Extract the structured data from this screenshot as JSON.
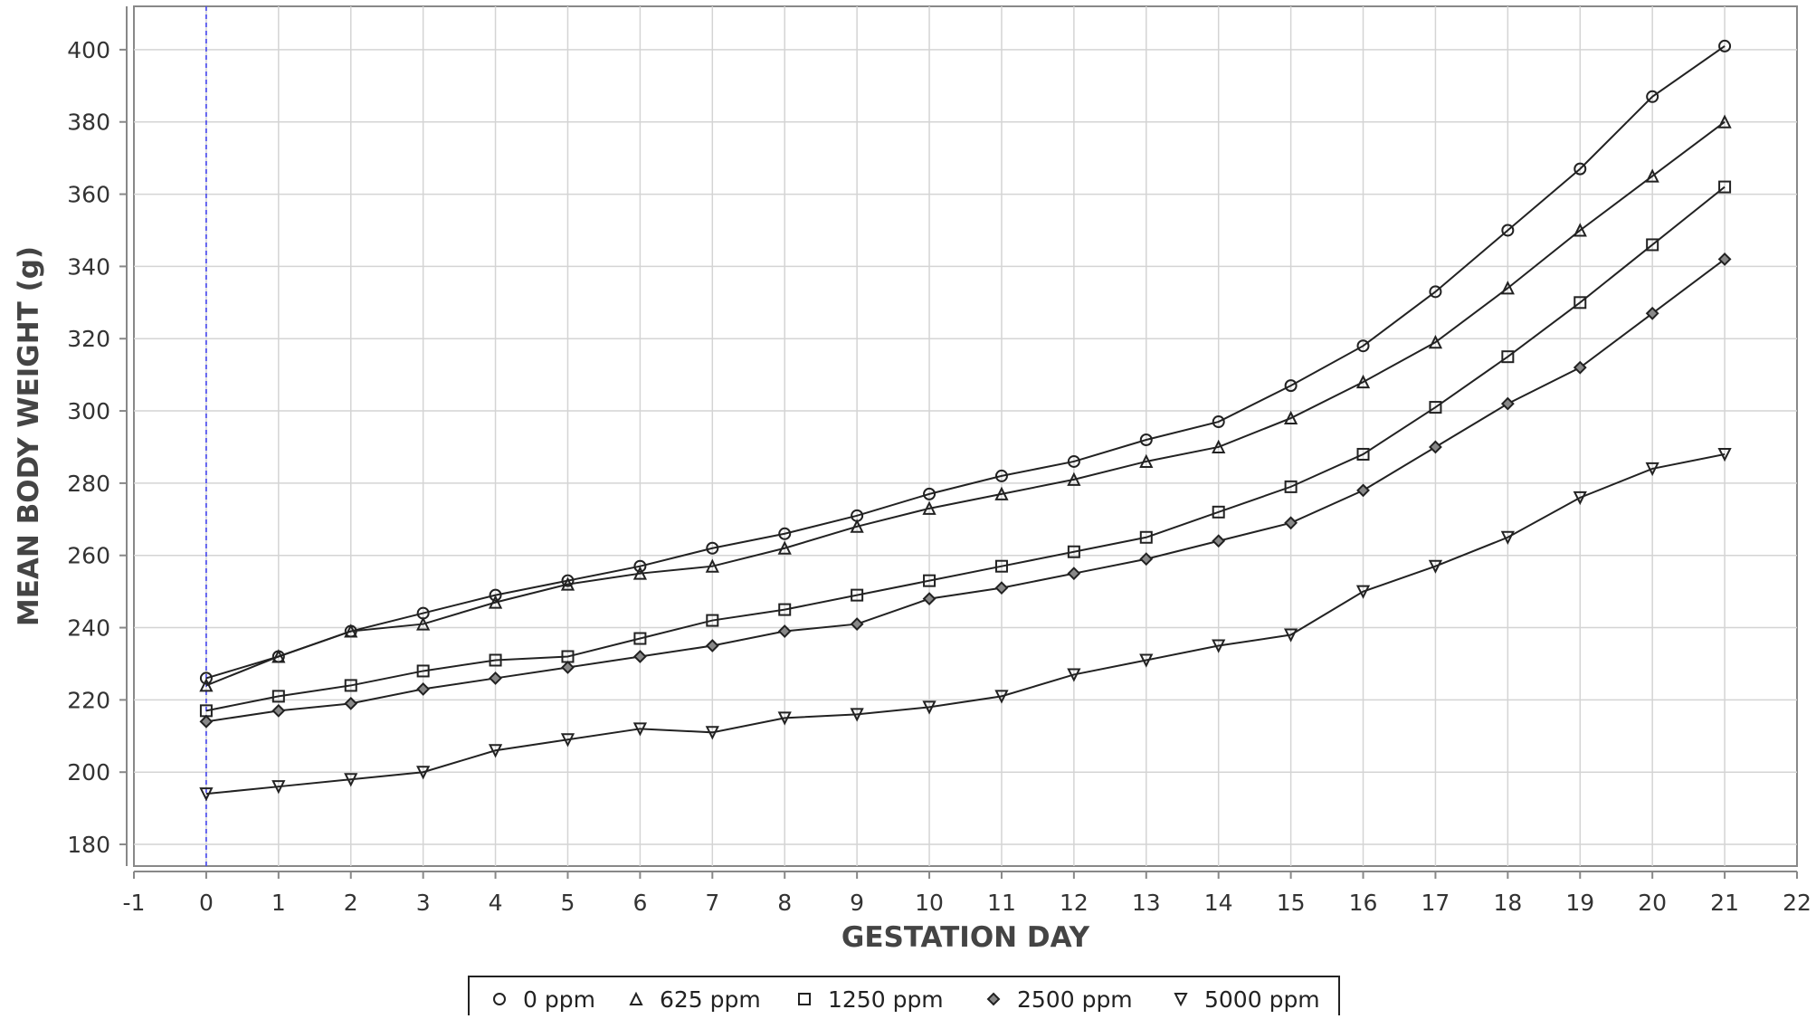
{
  "chart_data": {
    "type": "line",
    "title": "",
    "xlabel": "GESTATION DAY",
    "ylabel": "MEAN BODY WEIGHT (g)",
    "xlim": [
      -1,
      22
    ],
    "ylim": [
      174,
      412
    ],
    "x_ticks": [
      -1,
      0,
      1,
      2,
      3,
      4,
      5,
      6,
      7,
      8,
      9,
      10,
      11,
      12,
      13,
      14,
      15,
      16,
      17,
      18,
      19,
      20,
      21,
      22
    ],
    "y_ticks": [
      180,
      200,
      220,
      240,
      260,
      280,
      300,
      320,
      340,
      360,
      380,
      400
    ],
    "grid": true,
    "reference_line": {
      "x": 0,
      "color": "#3a3af0",
      "style": "dashed"
    },
    "legend": {
      "position": "bottom-center"
    },
    "line_color": "#222222",
    "x": [
      0,
      1,
      2,
      3,
      4,
      5,
      6,
      7,
      8,
      9,
      10,
      11,
      12,
      13,
      14,
      15,
      16,
      17,
      18,
      19,
      20,
      21
    ],
    "series": [
      {
        "name": "0 ppm",
        "marker": "circle",
        "values": [
          226,
          232,
          239,
          244,
          249,
          253,
          257,
          262,
          266,
          271,
          277,
          282,
          286,
          292,
          297,
          307,
          318,
          333,
          350,
          367,
          387,
          401
        ]
      },
      {
        "name": "625 ppm",
        "marker": "triangle-up",
        "values": [
          224,
          232,
          239,
          241,
          247,
          252,
          255,
          257,
          262,
          268,
          273,
          277,
          281,
          286,
          290,
          298,
          308,
          319,
          334,
          350,
          365,
          380
        ]
      },
      {
        "name": "1250 ppm",
        "marker": "square",
        "values": [
          217,
          221,
          224,
          228,
          231,
          232,
          237,
          242,
          245,
          249,
          253,
          257,
          261,
          265,
          272,
          279,
          288,
          301,
          315,
          330,
          346,
          362
        ]
      },
      {
        "name": "2500 ppm",
        "marker": "diamond",
        "values": [
          214,
          217,
          219,
          223,
          226,
          229,
          232,
          235,
          239,
          241,
          248,
          251,
          255,
          259,
          264,
          269,
          278,
          290,
          302,
          312,
          327,
          342
        ]
      },
      {
        "name": "5000 ppm",
        "marker": "triangle-down",
        "values": [
          194,
          196,
          198,
          200,
          206,
          209,
          212,
          211,
          215,
          216,
          218,
          221,
          227,
          231,
          235,
          238,
          250,
          257,
          265,
          276,
          284,
          288
        ]
      }
    ]
  }
}
